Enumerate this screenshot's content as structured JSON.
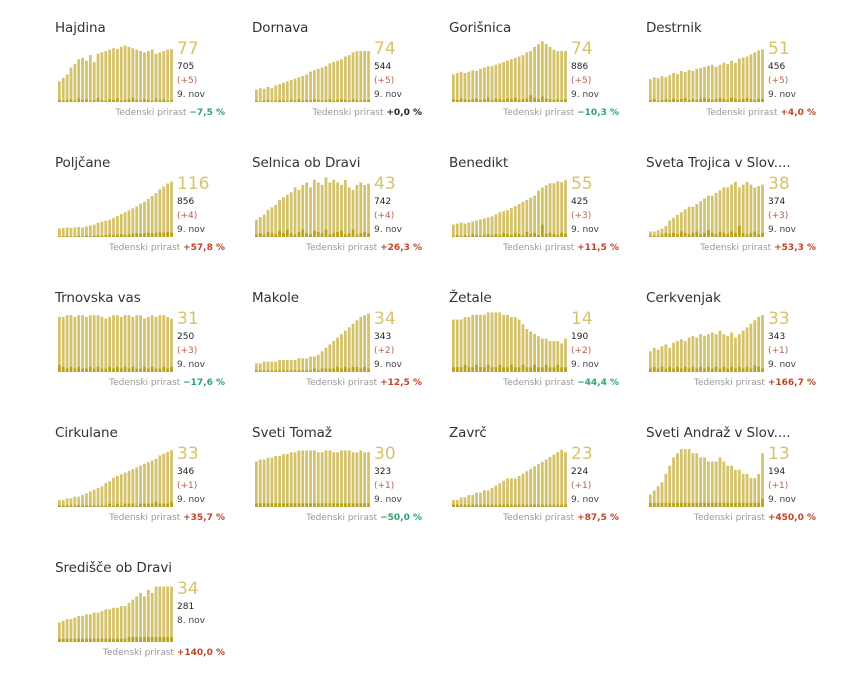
{
  "colors": {
    "active_fill": "#d4c36a",
    "daily_fill": "#b8a21c",
    "positive": "#c0442c",
    "negative": "#2ea36a",
    "neutral": "#222222",
    "big_number": "#d6c36a"
  },
  "growth_label": "Tedenski prirast",
  "chart_data": [
    {
      "type": "bar",
      "title": "Hajdina",
      "active": 77,
      "total": "705",
      "delta": "(+5)",
      "date": "9. nov",
      "growth": "−7,5 %",
      "sign": "negative",
      "values": [
        30,
        35,
        40,
        50,
        55,
        62,
        64,
        60,
        68,
        58,
        70,
        72,
        74,
        76,
        78,
        77,
        80,
        82,
        80,
        78,
        76,
        74,
        72,
        74,
        76,
        70,
        72,
        74,
        76,
        77
      ],
      "daily": [
        3,
        2,
        3,
        4,
        2,
        5,
        3,
        4,
        2,
        3,
        6,
        3,
        2,
        4,
        3,
        5,
        2,
        3,
        4,
        6,
        3,
        2,
        4,
        3,
        2,
        5,
        3,
        4,
        2,
        3
      ],
      "maxv": 90
    },
    {
      "type": "bar",
      "title": "Dornava",
      "active": 74,
      "total": "544",
      "delta": "(+5)",
      "date": "9. nov",
      "growth": "+0,0 %",
      "sign": "neutral",
      "values": [
        18,
        20,
        19,
        22,
        20,
        24,
        26,
        28,
        30,
        32,
        34,
        36,
        38,
        40,
        44,
        46,
        48,
        50,
        52,
        56,
        58,
        60,
        62,
        66,
        68,
        72,
        74,
        74,
        74,
        74
      ],
      "daily": [
        2,
        1,
        2,
        3,
        1,
        2,
        3,
        2,
        1,
        3,
        2,
        4,
        2,
        3,
        2,
        4,
        3,
        2,
        3,
        4,
        2,
        3,
        4,
        3,
        2,
        4,
        3,
        2,
        3,
        3
      ],
      "maxv": 90
    },
    {
      "type": "bar",
      "title": "Gorišnica",
      "active": 74,
      "total": "886",
      "delta": "(+5)",
      "date": "9. nov",
      "growth": "−10,3 %",
      "sign": "negative",
      "values": [
        40,
        42,
        44,
        42,
        44,
        46,
        45,
        48,
        50,
        52,
        52,
        54,
        56,
        58,
        60,
        62,
        64,
        66,
        68,
        72,
        74,
        80,
        84,
        88,
        84,
        80,
        76,
        74,
        74,
        74
      ],
      "daily": [
        4,
        3,
        5,
        4,
        3,
        4,
        5,
        3,
        4,
        6,
        3,
        5,
        4,
        3,
        5,
        4,
        6,
        3,
        4,
        5,
        10,
        6,
        4,
        8,
        5,
        4,
        3,
        4,
        3,
        4
      ],
      "maxv": 90
    },
    {
      "type": "bar",
      "title": "Destrnik",
      "active": 51,
      "total": "456",
      "delta": "(+5)",
      "date": "9. nov",
      "growth": "+4,0 %",
      "sign": "positive",
      "values": [
        22,
        24,
        23,
        25,
        24,
        26,
        28,
        27,
        30,
        29,
        31,
        30,
        32,
        33,
        34,
        35,
        36,
        34,
        36,
        38,
        37,
        40,
        38,
        42,
        43,
        44,
        46,
        48,
        50,
        51
      ],
      "daily": [
        2,
        3,
        1,
        2,
        3,
        2,
        3,
        2,
        3,
        4,
        2,
        3,
        2,
        3,
        4,
        3,
        2,
        3,
        4,
        3,
        2,
        4,
        3,
        2,
        3,
        4,
        3,
        2,
        3,
        3
      ],
      "maxv": 60
    },
    {
      "type": "bar",
      "title": "Poljčane",
      "active": 116,
      "total": "856",
      "delta": "(+4)",
      "date": "9. nov",
      "growth": "+57,8 %",
      "sign": "positive",
      "values": [
        18,
        19,
        20,
        19,
        20,
        21,
        20,
        22,
        24,
        26,
        30,
        32,
        34,
        36,
        40,
        44,
        48,
        52,
        56,
        60,
        64,
        70,
        74,
        80,
        86,
        92,
        100,
        106,
        112,
        116
      ],
      "daily": [
        2,
        2,
        3,
        2,
        2,
        3,
        2,
        3,
        2,
        3,
        4,
        3,
        4,
        5,
        4,
        5,
        6,
        5,
        6,
        7,
        8,
        7,
        8,
        9,
        8,
        9,
        10,
        9,
        10,
        9
      ],
      "maxv": 130
    },
    {
      "type": "bar",
      "title": "Selnica ob Dravi",
      "active": 43,
      "total": "742",
      "delta": "(+4)",
      "date": "9. nov",
      "growth": "+26,3 %",
      "sign": "positive",
      "values": [
        14,
        16,
        18,
        22,
        24,
        26,
        30,
        32,
        34,
        36,
        40,
        38,
        42,
        44,
        40,
        46,
        44,
        42,
        48,
        44,
        46,
        44,
        42,
        46,
        40,
        38,
        42,
        44,
        42,
        43
      ],
      "daily": [
        2,
        3,
        2,
        4,
        3,
        2,
        5,
        3,
        6,
        3,
        2,
        4,
        6,
        3,
        2,
        5,
        4,
        3,
        6,
        2,
        3,
        4,
        5,
        2,
        3,
        6,
        2,
        3,
        4,
        3
      ],
      "maxv": 50
    },
    {
      "type": "bar",
      "title": "Benedikt",
      "active": 55,
      "total": "425",
      "delta": "(+3)",
      "date": "9. nov",
      "growth": "+11,5 %",
      "sign": "positive",
      "values": [
        12,
        13,
        14,
        13,
        14,
        15,
        16,
        17,
        18,
        19,
        20,
        22,
        24,
        25,
        26,
        28,
        30,
        32,
        34,
        36,
        38,
        40,
        45,
        48,
        50,
        52,
        52,
        54,
        53,
        55
      ],
      "daily": [
        1,
        2,
        1,
        2,
        1,
        3,
        2,
        1,
        2,
        3,
        2,
        3,
        2,
        4,
        3,
        2,
        4,
        3,
        2,
        5,
        3,
        4,
        2,
        12,
        3,
        4,
        3,
        2,
        4,
        3
      ],
      "maxv": 60
    },
    {
      "type": "bar",
      "title": "Sveta Trojica v Slov....",
      "active": 38,
      "total": "374",
      "delta": "(+3)",
      "date": "9. nov",
      "growth": "+53,3 %",
      "sign": "positive",
      "values": [
        4,
        4,
        5,
        6,
        8,
        12,
        14,
        16,
        18,
        20,
        22,
        22,
        24,
        26,
        28,
        30,
        30,
        32,
        34,
        36,
        36,
        38,
        40,
        36,
        38,
        40,
        38,
        36,
        37,
        38
      ],
      "daily": [
        1,
        1,
        1,
        2,
        3,
        2,
        3,
        2,
        4,
        3,
        2,
        3,
        4,
        2,
        3,
        5,
        3,
        2,
        4,
        3,
        2,
        4,
        3,
        8,
        3,
        2,
        3,
        4,
        2,
        3
      ],
      "maxv": 45
    },
    {
      "type": "bar",
      "title": "Trnovska vas",
      "active": 31,
      "total": "250",
      "delta": "(+3)",
      "date": "9. nov",
      "growth": "−17,6 %",
      "sign": "negative",
      "values": [
        32,
        32,
        33,
        33,
        32,
        33,
        33,
        32,
        33,
        33,
        33,
        32,
        31,
        32,
        33,
        33,
        32,
        33,
        33,
        32,
        33,
        33,
        31,
        32,
        33,
        32,
        33,
        33,
        32,
        31
      ],
      "daily": [
        4,
        3,
        2,
        3,
        2,
        3,
        2,
        2,
        3,
        2,
        3,
        2,
        2,
        3,
        2,
        3,
        2,
        3,
        2,
        3,
        2,
        2,
        3,
        2,
        3,
        2,
        2,
        3,
        2,
        3
      ],
      "maxv": 36
    },
    {
      "type": "bar",
      "title": "Makole",
      "active": 34,
      "total": "343",
      "delta": "(+2)",
      "date": "9. nov",
      "growth": "+12,5 %",
      "sign": "positive",
      "values": [
        5,
        5,
        6,
        6,
        6,
        6,
        7,
        7,
        7,
        7,
        7,
        8,
        8,
        8,
        9,
        9,
        10,
        12,
        14,
        16,
        18,
        20,
        22,
        24,
        26,
        28,
        30,
        32,
        33,
        34
      ],
      "daily": [
        1,
        1,
        1,
        1,
        1,
        1,
        1,
        1,
        1,
        1,
        1,
        1,
        1,
        1,
        1,
        2,
        1,
        2,
        2,
        2,
        2,
        3,
        2,
        3,
        2,
        3,
        3,
        2,
        3,
        2
      ],
      "maxv": 36
    },
    {
      "type": "bar",
      "title": "Žetale",
      "active": 14,
      "total": "190",
      "delta": "(+2)",
      "date": "9. nov",
      "growth": "−44,4 %",
      "sign": "negative",
      "values": [
        22,
        22,
        22,
        23,
        23,
        24,
        24,
        24,
        24,
        25,
        25,
        25,
        25,
        24,
        24,
        23,
        23,
        22,
        20,
        18,
        17,
        16,
        15,
        14,
        14,
        13,
        13,
        13,
        12,
        14
      ],
      "daily": [
        2,
        2,
        2,
        3,
        2,
        2,
        3,
        2,
        2,
        3,
        2,
        2,
        3,
        2,
        2,
        3,
        2,
        2,
        3,
        2,
        2,
        3,
        2,
        2,
        3,
        2,
        2,
        3,
        2,
        2
      ],
      "maxv": 26
    },
    {
      "type": "bar",
      "title": "Cerkvenjak",
      "active": 33,
      "total": "343",
      "delta": "(+1)",
      "date": "9. nov",
      "growth": "+166,7 %",
      "sign": "positive",
      "values": [
        12,
        14,
        13,
        15,
        16,
        14,
        17,
        18,
        19,
        18,
        20,
        21,
        20,
        22,
        21,
        22,
        23,
        22,
        24,
        22,
        21,
        23,
        20,
        22,
        24,
        26,
        28,
        30,
        32,
        33
      ],
      "daily": [
        2,
        3,
        2,
        3,
        2,
        3,
        2,
        3,
        2,
        3,
        2,
        3,
        2,
        3,
        2,
        3,
        2,
        3,
        2,
        3,
        2,
        3,
        2,
        3,
        2,
        3,
        2,
        4,
        3,
        2
      ],
      "maxv": 36
    },
    {
      "type": "bar",
      "title": "Cirkulane",
      "active": 33,
      "total": "346",
      "delta": "(+1)",
      "date": "9. nov",
      "growth": "+35,7 %",
      "sign": "positive",
      "values": [
        4,
        4,
        5,
        5,
        6,
        6,
        7,
        8,
        9,
        10,
        11,
        12,
        14,
        15,
        17,
        18,
        19,
        20,
        21,
        22,
        23,
        24,
        25,
        26,
        27,
        28,
        30,
        31,
        32,
        33
      ],
      "daily": [
        1,
        1,
        1,
        1,
        1,
        1,
        1,
        1,
        1,
        1,
        1,
        1,
        1,
        2,
        1,
        2,
        1,
        2,
        2,
        2,
        1,
        2,
        2,
        2,
        2,
        3,
        2,
        2,
        2,
        3
      ],
      "maxv": 36
    },
    {
      "type": "bar",
      "title": "Sveti Tomaž",
      "active": 30,
      "total": "323",
      "delta": "(+1)",
      "date": "9. nov",
      "growth": "−50,0 %",
      "sign": "negative",
      "values": [
        25,
        26,
        26,
        27,
        27,
        28,
        28,
        29,
        29,
        30,
        30,
        31,
        31,
        31,
        31,
        31,
        30,
        30,
        31,
        31,
        30,
        30,
        31,
        31,
        31,
        30,
        30,
        31,
        30,
        30
      ],
      "daily": [
        2,
        2,
        2,
        2,
        2,
        2,
        2,
        2,
        2,
        2,
        2,
        2,
        2,
        2,
        2,
        2,
        2,
        2,
        2,
        2,
        2,
        2,
        2,
        2,
        2,
        2,
        2,
        2,
        2,
        2
      ],
      "maxv": 34
    },
    {
      "type": "bar",
      "title": "Zavrč",
      "active": 23,
      "total": "224",
      "delta": "(+1)",
      "date": "9. nov",
      "growth": "+87,5 %",
      "sign": "positive",
      "values": [
        3,
        3,
        4,
        4,
        5,
        5,
        6,
        6,
        7,
        7,
        8,
        9,
        10,
        11,
        12,
        12,
        12,
        13,
        14,
        15,
        16,
        17,
        18,
        19,
        20,
        21,
        22,
        23,
        24,
        23
      ],
      "daily": [
        1,
        1,
        1,
        1,
        1,
        1,
        1,
        1,
        1,
        1,
        1,
        1,
        1,
        1,
        1,
        1,
        1,
        1,
        1,
        1,
        1,
        1,
        1,
        1,
        1,
        1,
        1,
        1,
        1,
        1
      ],
      "maxv": 26
    },
    {
      "type": "bar",
      "title": "Sveti Andraž v Slov....",
      "active": 13,
      "total": "194",
      "delta": "(+1)",
      "date": "9. nov",
      "growth": "+450,0 %",
      "sign": "positive",
      "values": [
        3,
        4,
        5,
        6,
        8,
        10,
        12,
        13,
        14,
        14,
        14,
        13,
        13,
        12,
        12,
        11,
        11,
        11,
        12,
        11,
        10,
        10,
        9,
        9,
        8,
        8,
        7,
        7,
        8,
        13
      ],
      "daily": [
        1,
        1,
        1,
        1,
        1,
        1,
        1,
        1,
        1,
        1,
        1,
        1,
        1,
        1,
        1,
        1,
        1,
        1,
        1,
        1,
        1,
        1,
        1,
        1,
        1,
        1,
        1,
        1,
        1,
        2
      ],
      "maxv": 15
    },
    {
      "type": "bar",
      "title": "Središče ob Dravi",
      "active": 34,
      "total": "281",
      "delta": null,
      "date": "8. nov",
      "growth": "+140,0 %",
      "sign": "positive",
      "values": [
        12,
        13,
        14,
        14,
        15,
        16,
        16,
        17,
        17,
        18,
        18,
        19,
        20,
        20,
        21,
        21,
        22,
        22,
        24,
        26,
        28,
        30,
        28,
        32,
        30,
        34,
        34,
        34,
        34,
        34
      ],
      "daily": [
        2,
        2,
        2,
        2,
        2,
        2,
        2,
        2,
        2,
        2,
        2,
        2,
        2,
        2,
        2,
        2,
        2,
        2,
        3,
        3,
        3,
        3,
        3,
        3,
        3,
        3,
        3,
        3,
        3,
        3
      ],
      "maxv": 38
    }
  ]
}
